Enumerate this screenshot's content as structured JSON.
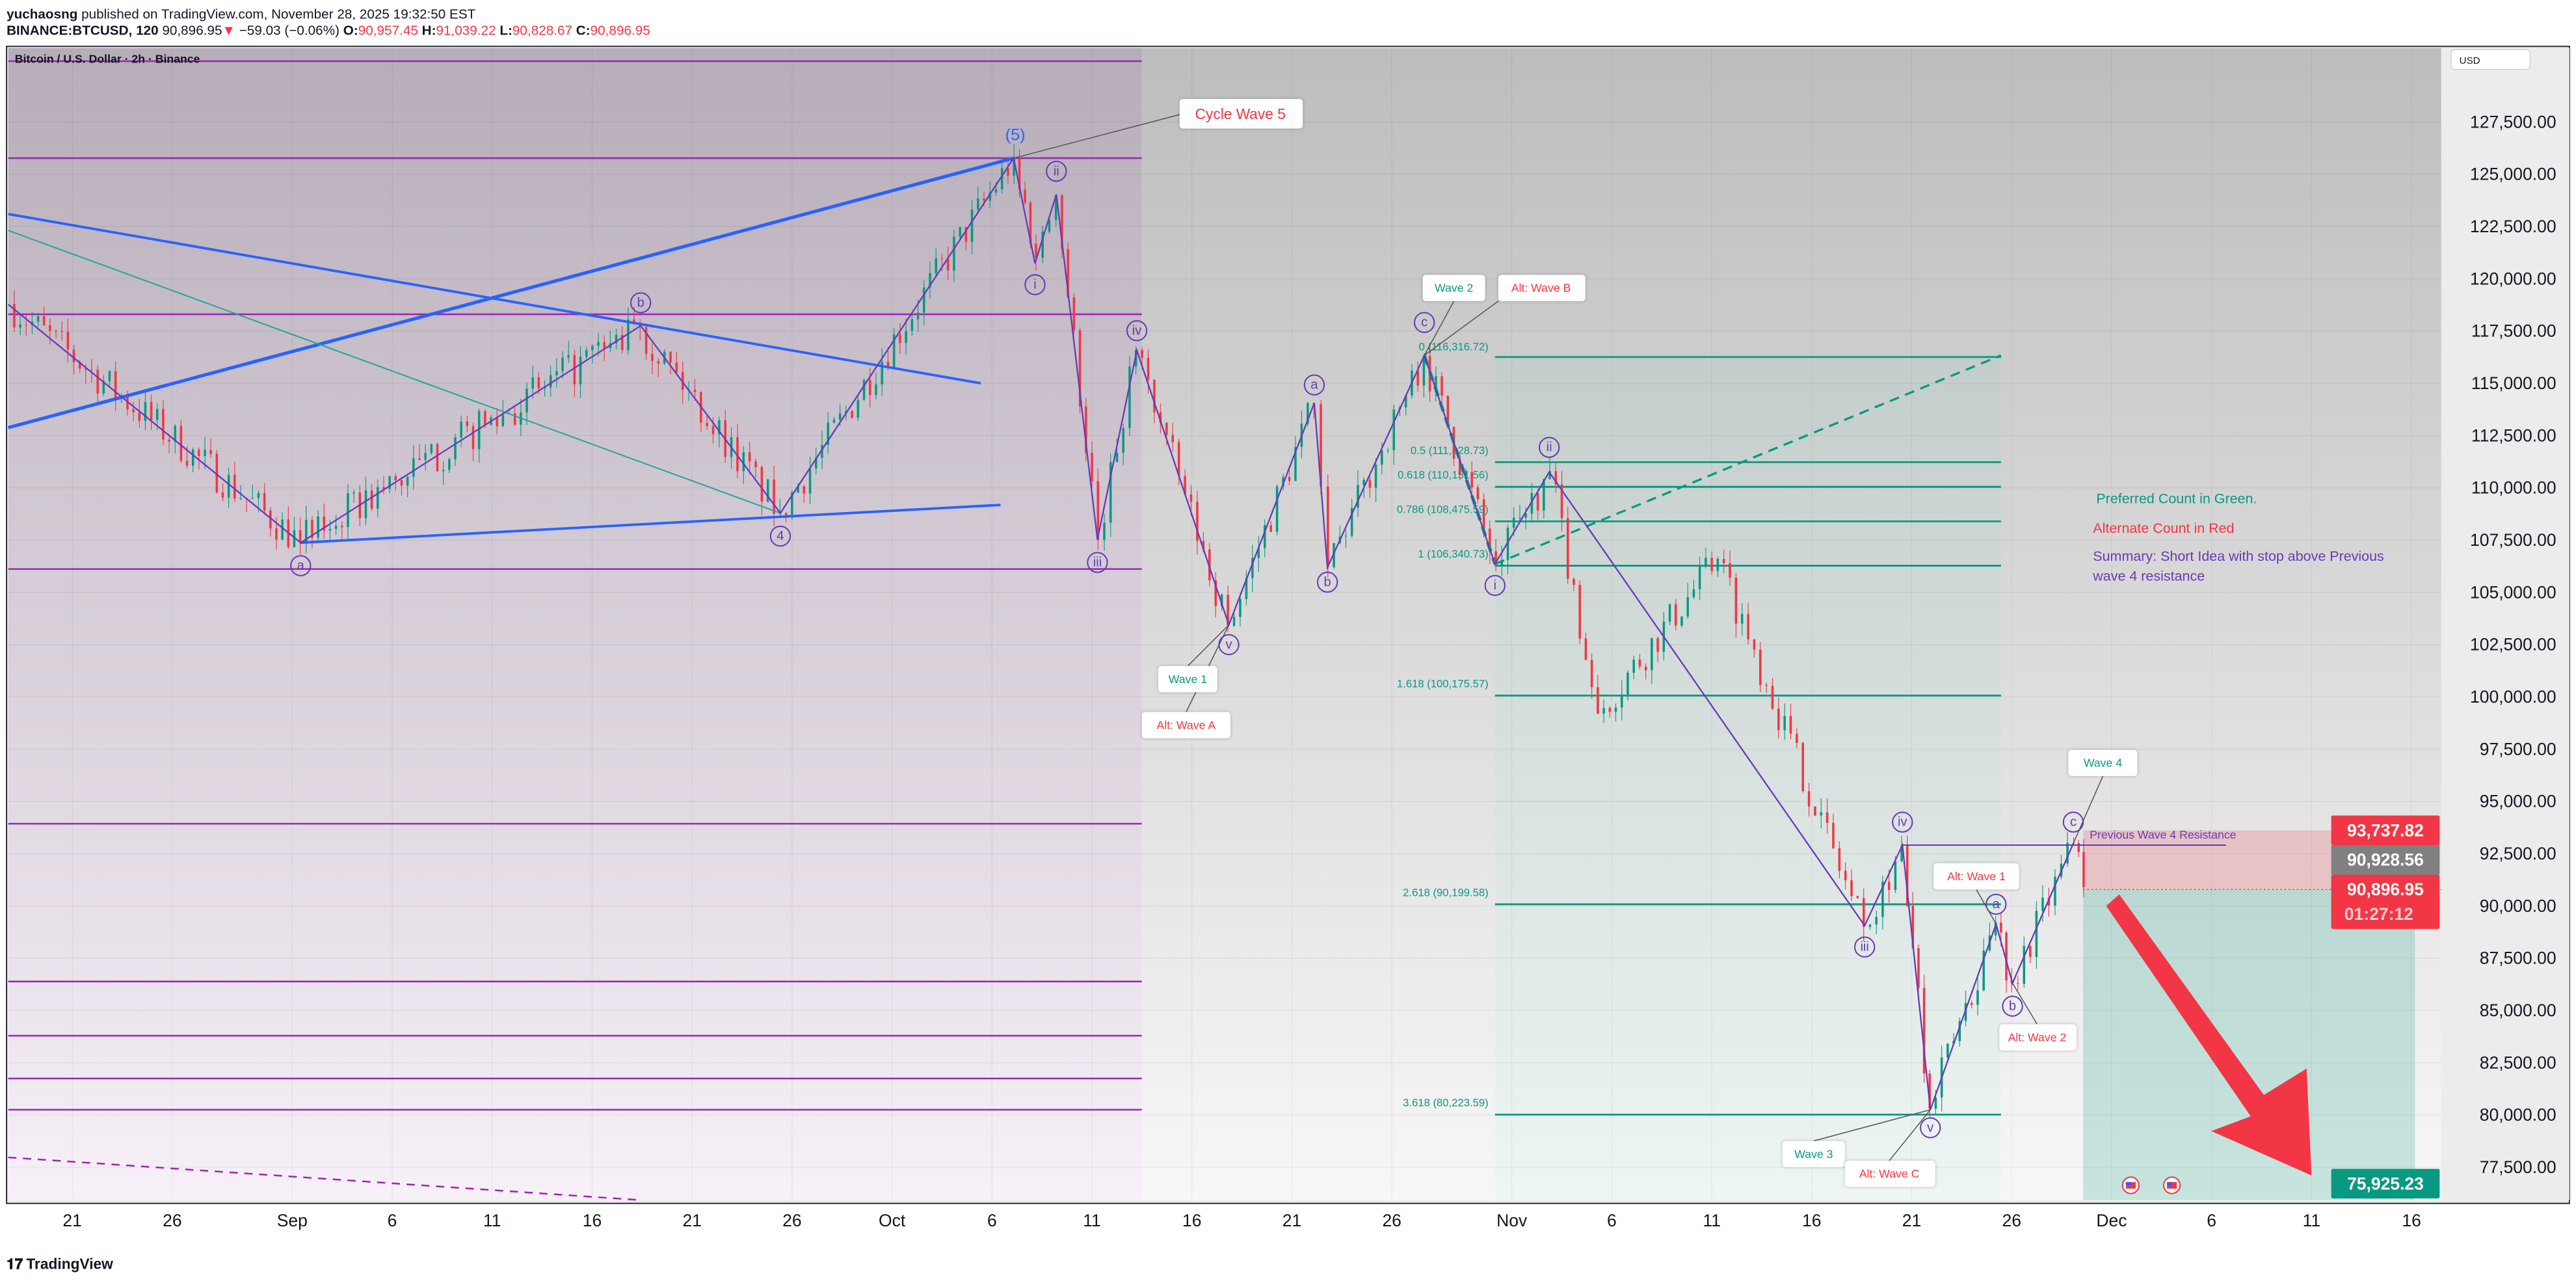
{
  "header": {
    "author": "yuchaosng",
    "published": " published on TradingView.com, November 28, 2025 19:32:50 EST",
    "symbol": "BINANCE:BTCUSD, 120",
    "last": "90,896.95",
    "change": "−59.03 (−0.06%)",
    "o_label": "O:",
    "o": "90,957.45",
    "h_label": "H:",
    "h": "91,039.22",
    "l_label": "L:",
    "l": "90,828.67",
    "c_label": "C:",
    "c": "90,896.95"
  },
  "chart": {
    "title": "Bitcoin / U.S. Dollar · 2h · Binance",
    "currency": "USD",
    "colors": {
      "up": "#089981",
      "down": "#f23645",
      "wave": "#673ab7",
      "trend": "#2962ff",
      "level": "#9c27b0"
    }
  },
  "price_axis": [
    "127,500.00",
    "125,000.00",
    "122,500.00",
    "120,000.00",
    "117,500.00",
    "115,000.00",
    "112,500.00",
    "110,000.00",
    "107,500.00",
    "105,000.00",
    "102,500.00",
    "100,000.00",
    "97,500.00",
    "95,000.00",
    "92,500.00",
    "90,000.00",
    "87,500.00",
    "85,000.00",
    "82,500.00",
    "80,000.00",
    "77,500.00"
  ],
  "price_values": [
    127500,
    125000,
    122500,
    120000,
    117500,
    115000,
    112500,
    110000,
    107500,
    105000,
    102500,
    100000,
    97500,
    95000,
    92500,
    90000,
    87500,
    85000,
    82500,
    80000,
    77500
  ],
  "badges": {
    "stop": "93,737.82",
    "mark": "90,928.56",
    "last": "90,896.95",
    "countdown": "01:27:12",
    "target": "75,925.23"
  },
  "time_axis": [
    {
      "label": "21",
      "day": 0
    },
    {
      "label": "26",
      "day": 5
    },
    {
      "label": "Sep",
      "day": 11
    },
    {
      "label": "6",
      "day": 16
    },
    {
      "label": "11",
      "day": 21
    },
    {
      "label": "16",
      "day": 26
    },
    {
      "label": "21",
      "day": 31
    },
    {
      "label": "26",
      "day": 36
    },
    {
      "label": "Oct",
      "day": 41
    },
    {
      "label": "6",
      "day": 46
    },
    {
      "label": "11",
      "day": 51
    },
    {
      "label": "16",
      "day": 56
    },
    {
      "label": "21",
      "day": 61
    },
    {
      "label": "26",
      "day": 66
    },
    {
      "label": "Nov",
      "day": 72
    },
    {
      "label": "6",
      "day": 77
    },
    {
      "label": "11",
      "day": 82
    },
    {
      "label": "16",
      "day": 87
    },
    {
      "label": "21",
      "day": 92
    },
    {
      "label": "26",
      "day": 97
    },
    {
      "label": "Dec",
      "day": 102
    },
    {
      "label": "6",
      "day": 107
    },
    {
      "label": "11",
      "day": 112
    },
    {
      "label": "16",
      "day": 117
    }
  ],
  "price_path": [
    [
      -3.2,
      118800
    ],
    [
      11.4,
      107400
    ],
    [
      28.4,
      117700
    ],
    [
      35.4,
      108800
    ],
    [
      47.1,
      125800
    ],
    [
      48.2,
      121000
    ],
    [
      49.2,
      124000
    ],
    [
      51.3,
      107500
    ],
    [
      53.2,
      116600
    ],
    [
      57.8,
      103400
    ],
    [
      62.1,
      114000
    ],
    [
      62.8,
      106200
    ],
    [
      67.6,
      116300
    ],
    [
      71.2,
      106300
    ],
    [
      73.9,
      110800
    ],
    [
      76.3,
      99200
    ],
    [
      82.3,
      106600
    ],
    [
      89.6,
      89000
    ],
    [
      91.5,
      92900
    ],
    [
      92.9,
      80300
    ],
    [
      96.2,
      89200
    ],
    [
      97.0,
      86300
    ],
    [
      100.1,
      93000
    ],
    [
      100.6,
      90900
    ]
  ],
  "fib": [
    {
      "label": "0 (116,316.72)"
    },
    {
      "label": "0.5 (111,328.73)"
    },
    {
      "label": "0.618 (110,151.56)"
    },
    {
      "label": "0.786 (108,475.59)"
    },
    {
      "label": "1 (106,340.73)"
    },
    {
      "label": "1.618 (100,175.57)"
    },
    {
      "label": "2.618 (90,199.58)"
    },
    {
      "label": "3.618 (80,223.59)"
    }
  ],
  "waves": {
    "five": "(5)",
    "i": "i",
    "ii": "ii",
    "iii": "iii",
    "iv": "iv",
    "v": "v",
    "a": "a",
    "b": "b",
    "c": "c",
    "four": "4"
  },
  "callouts": {
    "cycle_wave_5": "Cycle Wave 5",
    "wave_1": "Wave 1",
    "alt_wave_a": "Alt: Wave A",
    "wave_2": "Wave 2",
    "alt_wave_b": "Alt: Wave B",
    "wave_3": "Wave 3",
    "alt_wave_c": "Alt: Wave C",
    "wave_4": "Wave 4",
    "alt_wave_1": "Alt: Wave 1",
    "alt_wave_2": "Alt: Wave 2",
    "prev_w4": "Previous Wave 4 Resistance"
  },
  "notes": {
    "preferred": "Preferred Count in Green.",
    "alternate": "Alternate Count in Red",
    "summary_1": "Summary: Short Idea with stop above Previous",
    "summary_2": "wave 4 resistance"
  },
  "footer": {
    "brand": "TradingView"
  }
}
